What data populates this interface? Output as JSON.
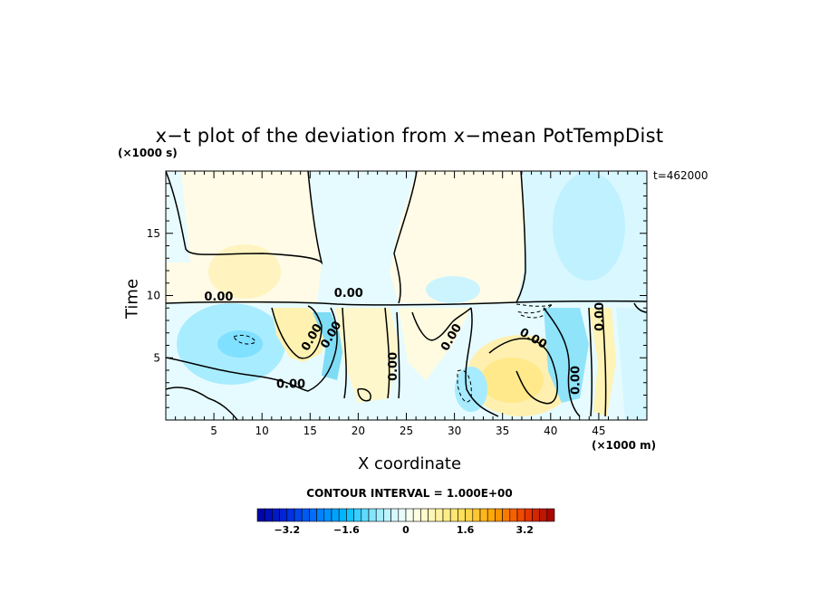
{
  "chart_data": {
    "type": "heatmap",
    "title": "x−t plot of the deviation from x−mean PotTempDist",
    "xlabel": "X coordinate",
    "ylabel": "Time",
    "x_unit": "(×1000 m)",
    "y_unit": "(×1000 s)",
    "timestamp": "t=462000",
    "xlim": [
      0,
      50
    ],
    "ylim": [
      0,
      20
    ],
    "x_ticks": [
      5,
      10,
      15,
      20,
      25,
      30,
      35,
      40,
      45
    ],
    "y_ticks": [
      5,
      10,
      15
    ],
    "contour_interval_label": "CONTOUR INTERVAL = 1.000E+00",
    "contour_labels": [
      "0.00",
      "0.00",
      "0.00",
      "0.00",
      "0.00",
      "0.00",
      "0.00",
      "0.00",
      "0.00",
      "0.00"
    ],
    "colorbar": {
      "range": [
        -4,
        4
      ],
      "tick_labels": [
        "−3.2",
        "−1.6",
        "0",
        "1.6",
        "3.2"
      ],
      "tick_values": [
        -3.2,
        -1.6,
        0,
        1.6,
        3.2
      ]
    },
    "colors": {
      "neg_strong": "#0000aa",
      "neg_mid": "#00aaff",
      "neg_light": "#ccf5ff",
      "neutral": "#ffffee",
      "pos_light": "#fff5b0",
      "pos_mid": "#ffaa00",
      "pos_strong": "#aa0000"
    }
  }
}
